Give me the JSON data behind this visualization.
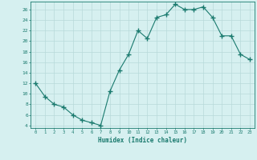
{
  "x": [
    0,
    1,
    2,
    3,
    4,
    5,
    6,
    7,
    8,
    9,
    10,
    11,
    12,
    13,
    14,
    15,
    16,
    17,
    18,
    19,
    20,
    21,
    22,
    23
  ],
  "y": [
    12,
    9.5,
    8,
    7.5,
    6,
    5,
    4.5,
    4,
    10.5,
    14.5,
    17.5,
    22,
    20.5,
    24.5,
    25,
    27,
    26,
    26,
    26.5,
    24.5,
    21,
    21,
    17.5,
    16.5
  ],
  "xlabel": "Humidex (Indice chaleur)",
  "ylim": [
    4,
    27
  ],
  "yticks": [
    4,
    6,
    8,
    10,
    12,
    14,
    16,
    18,
    20,
    22,
    24,
    26
  ],
  "xticks": [
    0,
    1,
    2,
    3,
    4,
    5,
    6,
    7,
    8,
    9,
    10,
    11,
    12,
    13,
    14,
    15,
    16,
    17,
    18,
    19,
    20,
    21,
    22,
    23
  ],
  "line_color": "#1a7a6e",
  "marker_color": "#1a7a6e",
  "bg_color": "#d6f0f0",
  "grid_color": "#b8dada",
  "xlabel_color": "#1a7a6e",
  "tick_color": "#1a7a6e",
  "font_family": "monospace"
}
